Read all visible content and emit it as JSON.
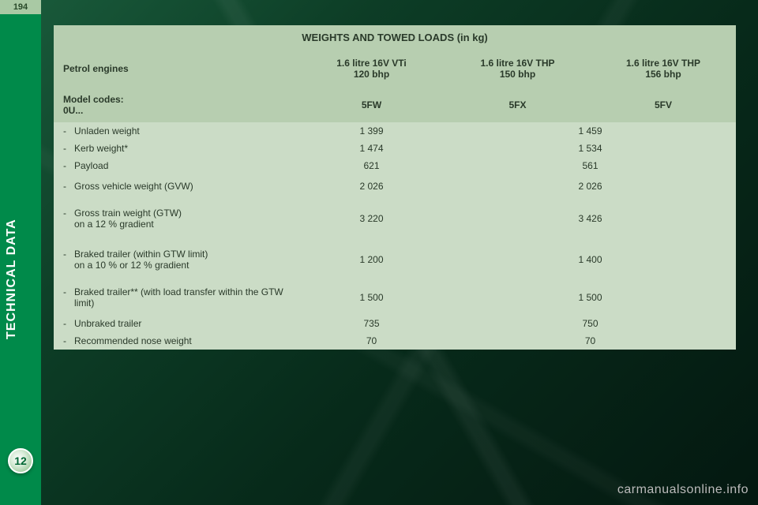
{
  "page_number": "194",
  "side_label": "TECHNICAL DATA",
  "chapter_number": "12",
  "table": {
    "title": "WEIGHTS AND TOWED LOADS (in kg)",
    "engine_header_label": "Petrol engines",
    "engines": [
      "1.6 litre 16V VTi\n120 bhp",
      "1.6 litre 16V THP\n150 bhp",
      "1.6 litre 16V THP\n156 bhp"
    ],
    "model_label": "Model codes:\n0U...",
    "model_codes": [
      "5FW",
      "5FX",
      "5FV"
    ],
    "rows": [
      {
        "label": "Unladen weight",
        "a": "1 399",
        "bc": "1 459",
        "size": "sm"
      },
      {
        "label": "Kerb weight*",
        "a": "1 474",
        "bc": "1 534",
        "size": "sm"
      },
      {
        "label": "Payload",
        "a": "621",
        "bc": "561",
        "size": "sm"
      },
      {
        "label": "Gross vehicle weight (GVW)",
        "a": "2 026",
        "bc": "2 026",
        "size": "med"
      },
      {
        "label": "Gross train weight (GTW)\non a 12 % gradient",
        "a": "3 220",
        "bc": "3 426",
        "size": "tall"
      },
      {
        "label": "Braked trailer (within GTW limit)\non a 10 % or 12 % gradient",
        "a": "1 200",
        "bc": "1 400",
        "size": "tall"
      },
      {
        "label": "Braked trailer** (with load transfer within the GTW limit)",
        "a": "1 500",
        "bc": "1 500",
        "size": "med"
      },
      {
        "label": "Unbraked trailer",
        "a": "735",
        "bc": "750",
        "size": "sm"
      },
      {
        "label": "Recommended nose weight",
        "a": "70",
        "bc": "70",
        "size": "sm"
      }
    ]
  },
  "watermark": "carmanualsonline.info",
  "colors": {
    "page_bg_dark": "#000000",
    "left_band": "#008a4a",
    "tab_bg": "#a9c9a4",
    "header_bg": "#b7ceb0",
    "row_bg": "#cbdcc6",
    "text": "#2a3a2a"
  }
}
